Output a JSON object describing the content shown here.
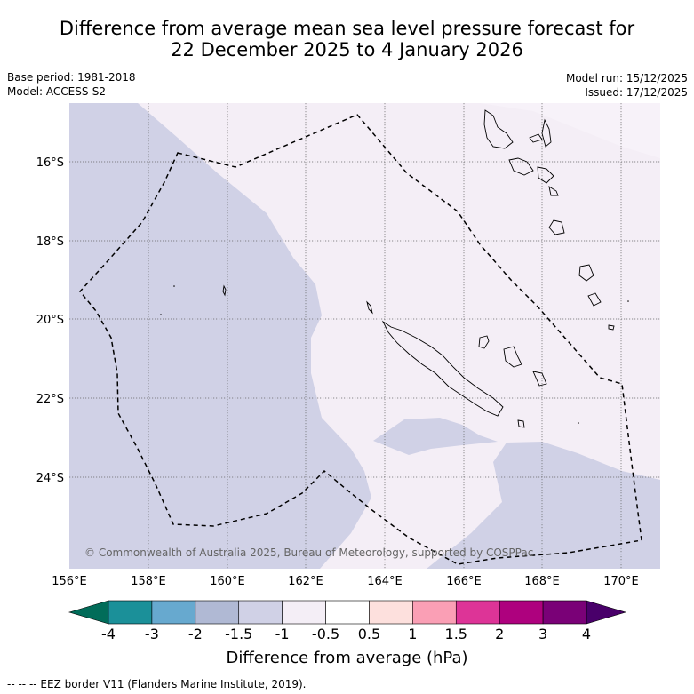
{
  "header": {
    "title_line1": "Difference from average mean sea level pressure forecast for",
    "title_line2": "22 December 2025 to 4 January 2026",
    "base_period": "Base period: 1981-2018",
    "model": "Model: ACCESS-S2",
    "model_run": "Model run: 15/12/2025",
    "issued": "Issued: 17/12/2025"
  },
  "map": {
    "lon_labels": [
      "156°E",
      "158°E",
      "160°E",
      "162°E",
      "164°E",
      "166°E",
      "168°E",
      "170°E"
    ],
    "lat_labels": [
      "16°S",
      "18°S",
      "20°S",
      "22°S",
      "24°S"
    ],
    "copyright": "© Commonwealth of Australia 2025, Bureau of Meteorology, supported by COSPPac",
    "colors": {
      "neg_1_5_to_1": "#d0d1e6",
      "neg_1_to_0_5": "#f4eef6",
      "land_stroke": "#000000"
    }
  },
  "colorbar": {
    "labels": [
      "-4",
      "-3",
      "-2",
      "-1.5",
      "-1",
      "-0.5",
      "0.5",
      "1",
      "1.5",
      "2",
      "3",
      "4"
    ],
    "colors": [
      "#1b9099",
      "#67a9cf",
      "#b0b9d4",
      "#d0d1e6",
      "#f4eef6",
      "#ffffff",
      "#fde0dd",
      "#fa9fb5",
      "#dd3497",
      "#ae017e",
      "#7a0177"
    ],
    "low_extend_color": "#016c59",
    "high_extend_color": "#49006a",
    "title": "Difference from average (hPa)"
  },
  "footnote": "--  --  -- EEZ border V11 (Flanders Marine Institute, 2019)."
}
